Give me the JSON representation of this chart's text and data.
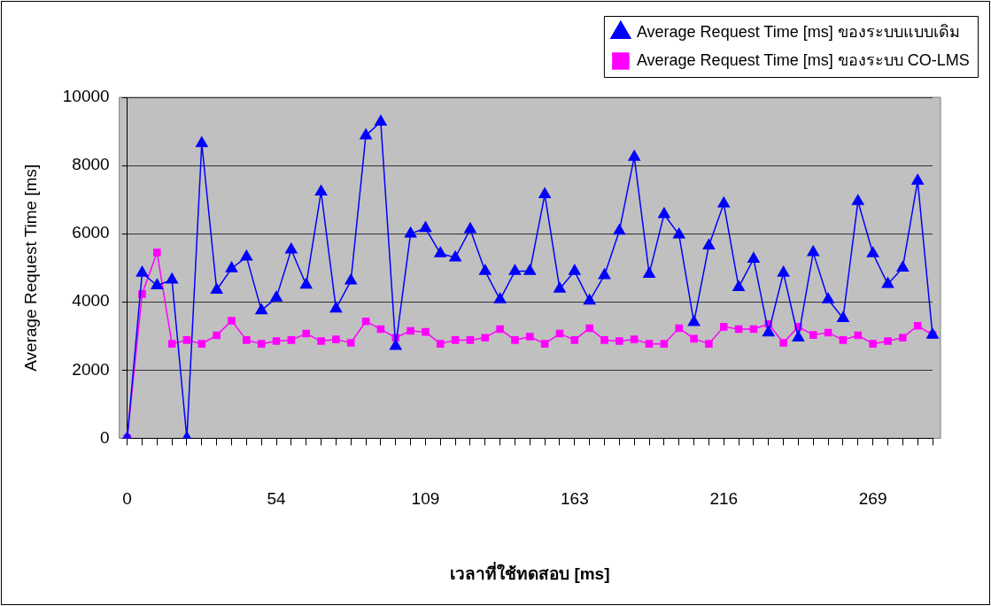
{
  "chart_data": {
    "type": "line",
    "xlabel": "เวลาที่ใช้ทดสอบ [ms]",
    "ylabel": "Average Request Time [ms]",
    "categories": [
      "0",
      null,
      null,
      null,
      null,
      null,
      null,
      null,
      null,
      null,
      "54",
      null,
      null,
      null,
      null,
      null,
      null,
      null,
      null,
      null,
      "109",
      null,
      null,
      null,
      null,
      null,
      null,
      null,
      null,
      null,
      "163",
      null,
      null,
      null,
      null,
      null,
      null,
      null,
      null,
      null,
      "216",
      null,
      null,
      null,
      null,
      null,
      null,
      null,
      null,
      null,
      "269",
      null,
      null,
      null,
      null
    ],
    "series": [
      {
        "name": "Average Request Time [ms] ของระบบ CO-LMS",
        "color": "#ff00ff",
        "marker": "square",
        "values": [
          0,
          4230,
          5450,
          2770,
          2880,
          2770,
          3020,
          3450,
          2880,
          2770,
          2850,
          2880,
          3070,
          2850,
          2900,
          2800,
          3430,
          3200,
          2950,
          3150,
          3120,
          2770,
          2880,
          2880,
          2950,
          3200,
          2880,
          2980,
          2770,
          3070,
          2880,
          3230,
          2880,
          2850,
          2900,
          2770,
          2770,
          3230,
          2920,
          2770,
          3270,
          3200,
          3200,
          3350,
          2800,
          3270,
          3030,
          3100,
          2880,
          3020,
          2770,
          2850,
          2950,
          3300,
          3030
        ]
      },
      {
        "name": "Average Request Time [ms] ของระบบแบบเดิม",
        "color": "#0000ff",
        "marker": "triangle",
        "values": [
          0,
          4850,
          4480,
          4650,
          0,
          8650,
          4350,
          4980,
          5320,
          3750,
          4120,
          5530,
          4500,
          7230,
          3800,
          4620,
          8880,
          9280,
          2700,
          6000,
          6160,
          5420,
          5300,
          6130,
          4900,
          4070,
          4900,
          4900,
          7150,
          4380,
          4900,
          4030,
          4780,
          6080,
          8250,
          4820,
          6570,
          5970,
          3400,
          5650,
          6880,
          4430,
          5260,
          3100,
          4850,
          2950,
          5450,
          4070,
          3520,
          6950,
          5420,
          4520,
          5000,
          7550,
          3030
        ]
      }
    ],
    "ylim": [
      0,
      10000
    ],
    "yticks": [
      0,
      2000,
      4000,
      6000,
      8000,
      10000
    ],
    "grid": "y",
    "legend": "top right"
  }
}
